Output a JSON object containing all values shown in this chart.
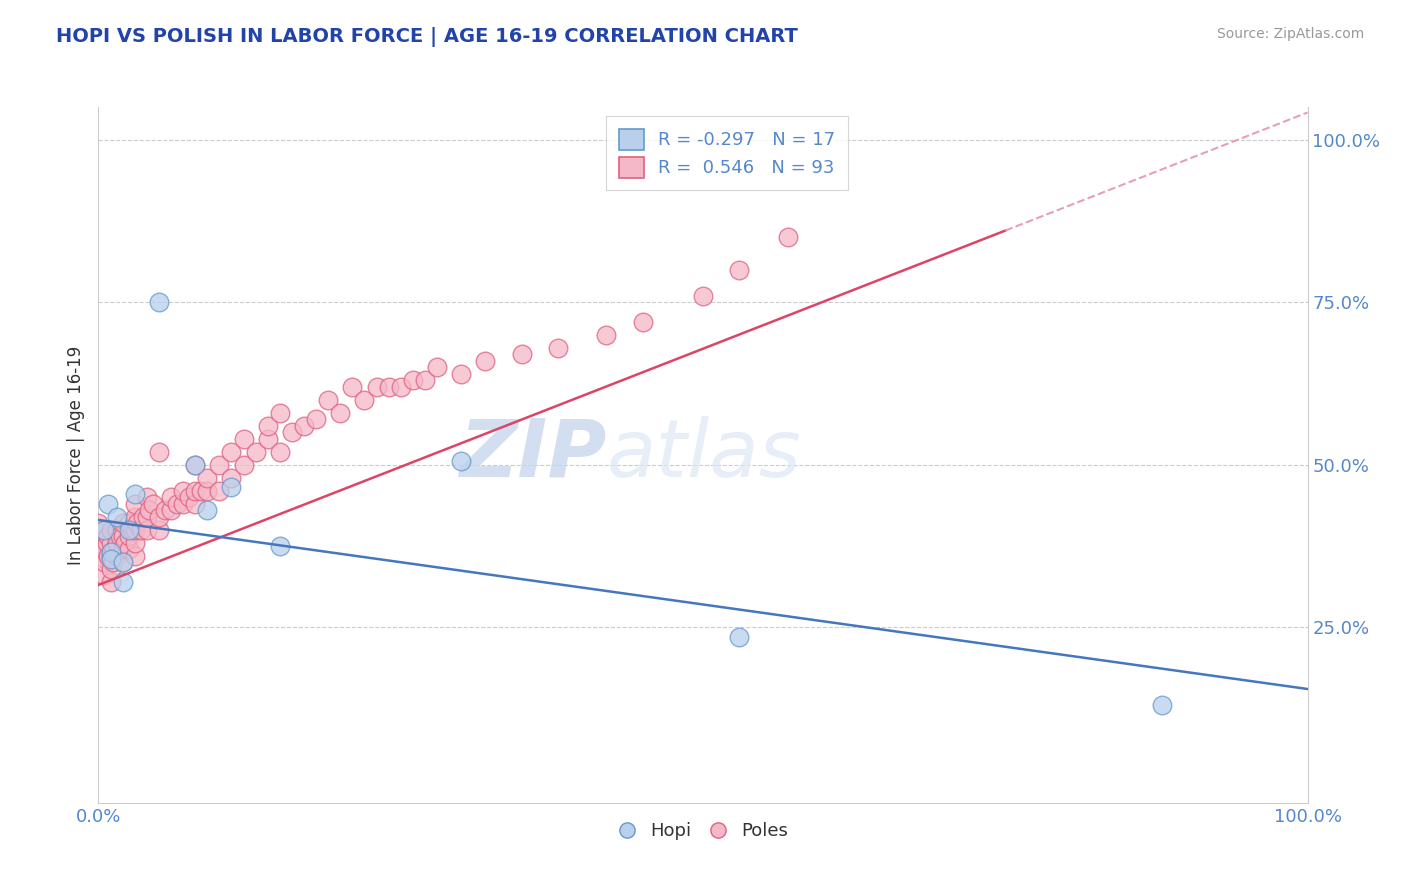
{
  "title": "HOPI VS POLISH IN LABOR FORCE | AGE 16-19 CORRELATION CHART",
  "source": "Source: ZipAtlas.com",
  "ylabel": "In Labor Force | Age 16-19",
  "xlim": [
    0,
    1
  ],
  "ylim": [
    0,
    1
  ],
  "xticks": [
    0.0,
    1.0
  ],
  "yticks": [
    0.25,
    0.5,
    0.75,
    1.0
  ],
  "xticklabels": [
    "0.0%",
    "100.0%"
  ],
  "yticklabels": [
    "25.0%",
    "50.0%",
    "75.0%",
    "100.0%"
  ],
  "background_color": "#ffffff",
  "grid_color": "#cccccc",
  "hopi_color": "#b8d0ec",
  "poles_color": "#f5b8c8",
  "hopi_edge_color": "#6699cc",
  "poles_edge_color": "#e06080",
  "hopi_line_color": "#4477bb",
  "poles_line_color": "#dd4466",
  "poles_dash_color": "#e8a0b0",
  "hopi_R": -0.297,
  "hopi_N": 17,
  "poles_R": 0.546,
  "poles_N": 93,
  "legend_label_hopi": "Hopi",
  "legend_label_poles": "Poles",
  "watermark_zip": "ZIP",
  "watermark_atlas": "atlas",
  "title_color": "#2244aa",
  "axis_label_color": "#333333",
  "tick_label_color": "#5588cc",
  "hopi_scatter_x": [
    0.005,
    0.008,
    0.01,
    0.01,
    0.015,
    0.02,
    0.02,
    0.025,
    0.03,
    0.05,
    0.08,
    0.09,
    0.11,
    0.15,
    0.3,
    0.53,
    0.88
  ],
  "hopi_scatter_y": [
    0.4,
    0.44,
    0.365,
    0.355,
    0.42,
    0.35,
    0.32,
    0.4,
    0.455,
    0.75,
    0.5,
    0.43,
    0.465,
    0.375,
    0.505,
    0.235,
    0.13
  ],
  "poles_scatter_x": [
    0.0,
    0.0,
    0.0,
    0.0,
    0.0,
    0.005,
    0.005,
    0.005,
    0.007,
    0.008,
    0.008,
    0.01,
    0.01,
    0.01,
    0.01,
    0.01,
    0.012,
    0.013,
    0.015,
    0.015,
    0.015,
    0.018,
    0.02,
    0.02,
    0.02,
    0.02,
    0.022,
    0.025,
    0.025,
    0.025,
    0.028,
    0.03,
    0.03,
    0.03,
    0.03,
    0.03,
    0.032,
    0.035,
    0.037,
    0.04,
    0.04,
    0.04,
    0.042,
    0.045,
    0.05,
    0.05,
    0.05,
    0.055,
    0.06,
    0.06,
    0.065,
    0.07,
    0.07,
    0.075,
    0.08,
    0.08,
    0.08,
    0.085,
    0.09,
    0.09,
    0.1,
    0.1,
    0.11,
    0.11,
    0.12,
    0.12,
    0.13,
    0.14,
    0.14,
    0.15,
    0.15,
    0.16,
    0.17,
    0.18,
    0.19,
    0.2,
    0.21,
    0.22,
    0.23,
    0.24,
    0.25,
    0.26,
    0.27,
    0.28,
    0.3,
    0.32,
    0.35,
    0.38,
    0.42,
    0.45,
    0.5,
    0.53,
    0.57
  ],
  "poles_scatter_y": [
    0.36,
    0.37,
    0.38,
    0.4,
    0.41,
    0.33,
    0.35,
    0.37,
    0.38,
    0.36,
    0.39,
    0.32,
    0.34,
    0.36,
    0.38,
    0.4,
    0.35,
    0.37,
    0.36,
    0.38,
    0.4,
    0.39,
    0.35,
    0.37,
    0.39,
    0.41,
    0.38,
    0.37,
    0.39,
    0.41,
    0.4,
    0.36,
    0.38,
    0.4,
    0.42,
    0.44,
    0.41,
    0.4,
    0.42,
    0.4,
    0.42,
    0.45,
    0.43,
    0.44,
    0.4,
    0.42,
    0.52,
    0.43,
    0.43,
    0.45,
    0.44,
    0.44,
    0.46,
    0.45,
    0.44,
    0.46,
    0.5,
    0.46,
    0.46,
    0.48,
    0.46,
    0.5,
    0.48,
    0.52,
    0.5,
    0.54,
    0.52,
    0.54,
    0.56,
    0.52,
    0.58,
    0.55,
    0.56,
    0.57,
    0.6,
    0.58,
    0.62,
    0.6,
    0.62,
    0.62,
    0.62,
    0.63,
    0.63,
    0.65,
    0.64,
    0.66,
    0.67,
    0.68,
    0.7,
    0.72,
    0.76,
    0.8,
    0.85
  ],
  "poles_line_start_x": 0.0,
  "poles_line_start_y": 0.315,
  "poles_line_end_x": 0.75,
  "poles_line_end_y": 0.86,
  "hopi_line_start_x": 0.0,
  "hopi_line_start_y": 0.415,
  "hopi_line_end_x": 1.0,
  "hopi_line_end_y": 0.155
}
